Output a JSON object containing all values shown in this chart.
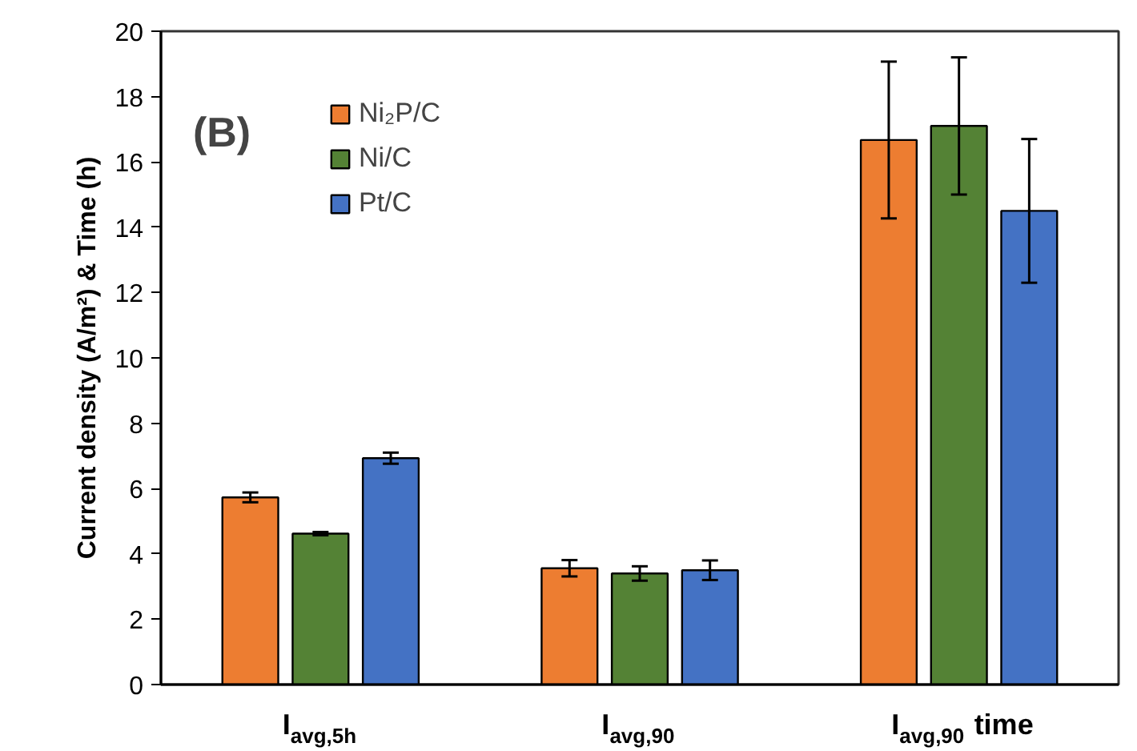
{
  "chart_data": {
    "type": "bar",
    "ylabel": "Current density (A/m²) & Time (h)",
    "categories": [
      "I$_{avg,5h}$",
      "I$_{avg,90}$",
      "I$_{avg,90}$ time"
    ],
    "series": [
      {
        "name": "Ni₂P/C",
        "color": "#ed7d31",
        "values": [
          5.73,
          3.56,
          16.67
        ],
        "errors": [
          0.15,
          0.25,
          2.4
        ]
      },
      {
        "name": "Ni/C",
        "color": "#548235",
        "values": [
          4.62,
          3.4,
          17.1
        ],
        "errors": [
          0.05,
          0.22,
          2.1
        ]
      },
      {
        "name": "Pt/C",
        "color": "#4472c4",
        "values": [
          6.93,
          3.5,
          14.5
        ],
        "errors": [
          0.17,
          0.3,
          2.2
        ]
      }
    ],
    "ylim": [
      0,
      20
    ],
    "yticks": [
      0,
      2,
      4,
      6,
      8,
      10,
      12,
      14,
      16,
      18,
      20
    ],
    "grid": false,
    "legend": "top left",
    "annotations": [
      "(B)"
    ]
  }
}
